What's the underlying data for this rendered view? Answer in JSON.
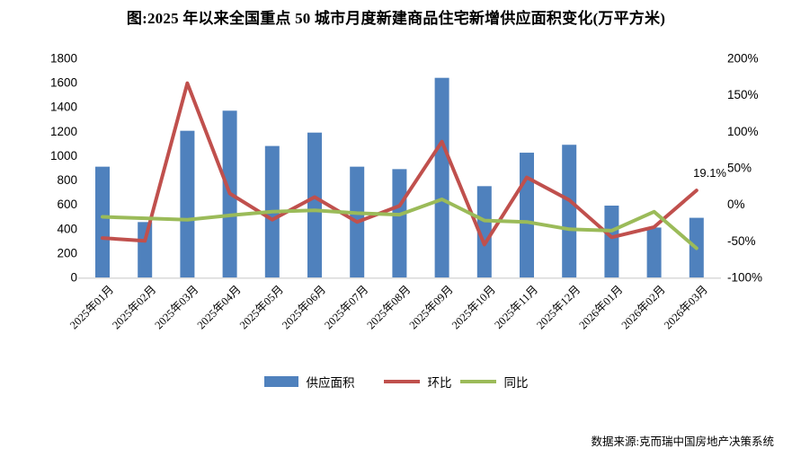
{
  "title": "图:2025 年以来全国重点 50 城市月度新建商品住宅新增供应面积变化(万平方米)",
  "source": "数据来源:克而瑞中国房地产决策系统",
  "annotation": {
    "label": "19.1%"
  },
  "legend": {
    "supply": "供应面积",
    "mom": "环比",
    "yoy": "同比"
  },
  "colors": {
    "bar": "#4F81BD",
    "mom_line": "#C0504D",
    "yoy_line": "#9BBB59",
    "axis_line": "#D9D9D9",
    "text": "#000000"
  },
  "chart_data": {
    "type": "bar",
    "subtype": "bar-with-two-lines",
    "categories": [
      "2025年01月",
      "2025年02月",
      "2025年03月",
      "2025年04月",
      "2025年05月",
      "2025年06月",
      "2025年07月",
      "2025年08月",
      "2025年09月",
      "2025年10月",
      "2025年11月",
      "2025年12月",
      "2026年01月",
      "2026年02月",
      "2026年03月"
    ],
    "series": [
      {
        "name": "供应面积",
        "type": "bar",
        "axis": "left",
        "unit": "万平方米",
        "values": [
          910,
          455,
          1205,
          1370,
          1080,
          1190,
          910,
          890,
          1640,
          750,
          1025,
          1090,
          590,
          410,
          490
        ]
      },
      {
        "name": "环比",
        "type": "line",
        "axis": "right",
        "unit": "%",
        "values": [
          -46,
          -50,
          166,
          15,
          -21,
          10,
          -24,
          -2,
          86,
          -55,
          37,
          6,
          -45,
          -31,
          19.1
        ]
      },
      {
        "name": "同比",
        "type": "line",
        "axis": "right",
        "unit": "%",
        "values": [
          -17,
          -19,
          -21,
          -15,
          -10,
          -8,
          -12,
          -14,
          7,
          -22,
          -24,
          -34,
          -36,
          -10,
          -60
        ]
      }
    ],
    "left_axis": {
      "min": 0,
      "max": 1800,
      "ticks": [
        "1800",
        "1600",
        "1400",
        "1200",
        "1000",
        "800",
        "600",
        "400",
        "200",
        "0"
      ]
    },
    "right_axis": {
      "min": -100,
      "max": 200,
      "ticks": [
        "200%",
        "150%",
        "100%",
        "50%",
        "0%",
        "-50%",
        "-100%"
      ]
    },
    "grid": false,
    "legend_position": "bottom",
    "annotation_on_last_point_of": "环比"
  }
}
